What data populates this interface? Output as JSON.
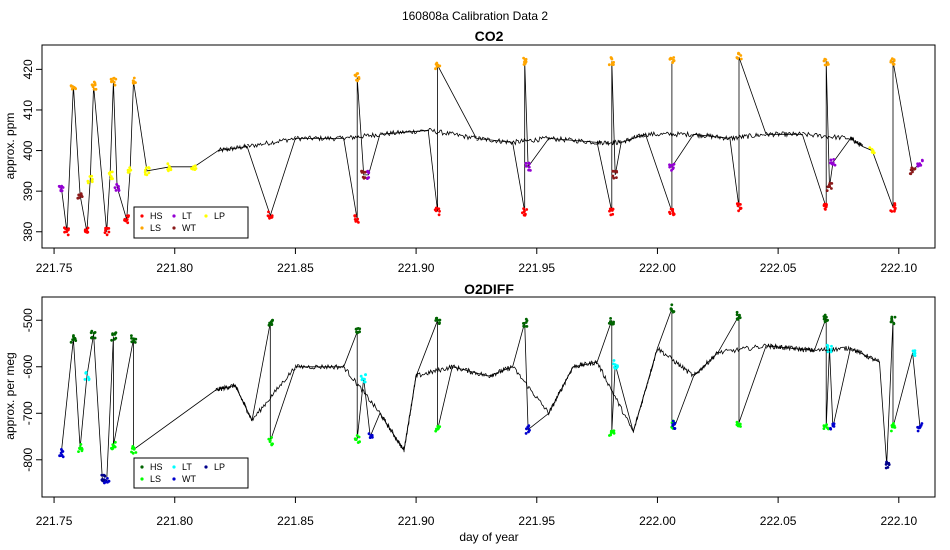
{
  "suptitle": "160808a   Calibration Data 2",
  "xlabel": "day of year",
  "colors": {
    "HS": "#ff0000",
    "LS": "#ffa500",
    "LT": "#9400d3",
    "WT": "#8b1a1a",
    "LP": "#ffff00",
    "line": "#000000",
    "HS2": "#006400",
    "LS2": "#00ff00",
    "LT2": "#00ffff",
    "WT2": "#0000cd",
    "LP2": "#00008b"
  },
  "legend_labels": [
    "HS",
    "LS",
    "LT",
    "WT",
    "LP"
  ],
  "chart_data": [
    {
      "type": "line",
      "title": "CO2",
      "xlabel": "",
      "ylabel": "approx. ppm",
      "xlim": [
        221.745,
        222.115
      ],
      "ylim": [
        376,
        426
      ],
      "xticks": [
        221.75,
        221.8,
        221.85,
        221.9,
        221.95,
        222.0,
        222.05,
        222.1
      ],
      "xtick_labels": [
        "221.75",
        "221.80",
        "221.85",
        "221.90",
        "221.95",
        "222.00",
        "222.05",
        "222.10"
      ],
      "yticks": [
        380,
        390,
        400,
        410,
        420
      ],
      "ytick_labels": [
        "380",
        "390",
        "400",
        "410",
        "420"
      ],
      "legend": "bottom-left",
      "series": [
        {
          "name": "HS",
          "x": [
            221.7553,
            221.7636,
            221.7718,
            221.7801,
            221.8396,
            221.8756,
            221.9089,
            221.945,
            221.9811,
            222.006,
            222.0338,
            222.0699,
            222.0976
          ],
          "y": [
            380,
            380,
            380,
            383,
            384,
            383,
            385,
            385,
            385,
            385,
            386,
            386,
            386
          ]
        },
        {
          "name": "LS",
          "x": [
            221.758,
            221.7664,
            221.7746,
            221.7829,
            221.8756,
            221.9089,
            221.945,
            221.9811,
            222.006,
            222.0338,
            222.0699,
            222.0976
          ],
          "y": [
            416,
            416,
            417,
            417,
            418,
            421,
            422,
            422,
            422,
            423,
            422,
            422
          ]
        },
        {
          "name": "LT",
          "x": [
            221.753,
            221.7761,
            221.8803,
            221.9464,
            222.006,
            222.0727,
            222.1088
          ],
          "y": [
            391,
            391,
            394,
            396,
            396,
            397,
            397
          ]
        },
        {
          "name": "WT",
          "x": [
            221.7608,
            221.8783,
            221.9825,
            222.0713,
            222.1057
          ],
          "y": [
            389,
            394,
            394,
            391,
            395
          ]
        },
        {
          "name": "LP",
          "x": [
            221.765,
            221.7732,
            221.7815,
            221.7885,
            221.798,
            221.808,
            222.089
          ],
          "y": [
            393,
            394,
            395,
            395,
            396,
            396,
            400
          ]
        },
        {
          "name": "",
          "x": [
            221.818,
            221.83,
            221.85,
            221.87,
            221.885,
            221.905,
            221.925,
            221.94,
            221.955,
            221.975,
            221.985,
            221.995,
            222.015,
            222.03,
            222.045,
            222.06,
            222.08,
            222.085
          ],
          "y": [
            400,
            401,
            403,
            403,
            404,
            405,
            403,
            402,
            403,
            402,
            402,
            404,
            404,
            403,
            404,
            404,
            403,
            401
          ]
        }
      ]
    },
    {
      "type": "line",
      "title": "O2DIFF",
      "xlabel": "day of year",
      "ylabel": "approx. per meg",
      "xlim": [
        221.745,
        222.115
      ],
      "ylim": [
        -880,
        -450
      ],
      "xticks": [
        221.75,
        221.8,
        221.85,
        221.9,
        221.95,
        222.0,
        222.05,
        222.1
      ],
      "xtick_labels": [
        "221.75",
        "221.80",
        "221.85",
        "221.90",
        "221.95",
        "222.00",
        "222.05",
        "222.10"
      ],
      "yticks": [
        -800,
        -700,
        -600,
        -500
      ],
      "ytick_labels": [
        "-800",
        "-700",
        "-600",
        "-500"
      ],
      "legend": "bottom-left",
      "series": [
        {
          "name": "HS",
          "x": [
            221.758,
            221.7664,
            221.7746,
            221.7829,
            221.8396,
            221.8756,
            221.9089,
            221.945,
            221.9811,
            222.006,
            222.0338,
            222.0699,
            222.0976
          ],
          "y": [
            -540,
            -530,
            -535,
            -540,
            -505,
            -525,
            -500,
            -505,
            -500,
            -475,
            -490,
            -495,
            -500
          ]
        },
        {
          "name": "LS",
          "x": [
            221.7608,
            221.7746,
            221.7829,
            221.8396,
            221.8756,
            221.9089,
            221.9811,
            222.006,
            222.0338,
            222.0699,
            222.0976
          ],
          "y": [
            -775,
            -770,
            -778,
            -760,
            -755,
            -735,
            -740,
            -725,
            -720,
            -730,
            -730
          ]
        },
        {
          "name": "LT",
          "x": [
            221.7636,
            221.8783,
            221.9825,
            222.0713,
            222.1057
          ],
          "y": [
            -620,
            -625,
            -595,
            -560,
            -570
          ]
        },
        {
          "name": "WT",
          "x": [
            221.753,
            221.7718,
            221.881,
            221.9464,
            222.0074,
            222.0727,
            222.1088
          ],
          "y": [
            -785,
            -845,
            -750,
            -735,
            -725,
            -730,
            -730
          ]
        },
        {
          "name": "LP",
          "x": [
            221.77,
            222.095
          ],
          "y": [
            -840,
            -810
          ]
        },
        {
          "name": "",
          "x": [
            221.817,
            221.825,
            221.832,
            221.85,
            221.87,
            221.885,
            221.895,
            221.9,
            221.915,
            221.93,
            221.94,
            221.955,
            221.965,
            221.975,
            221.99,
            222.0,
            222.015,
            222.025,
            222.045,
            222.055,
            222.065,
            222.08,
            222.092
          ],
          "y": [
            -650,
            -640,
            -715,
            -600,
            -600,
            -700,
            -780,
            -620,
            -600,
            -620,
            -600,
            -700,
            -600,
            -590,
            -740,
            -560,
            -620,
            -570,
            -555,
            -560,
            -565,
            -560,
            -590
          ]
        }
      ]
    }
  ]
}
